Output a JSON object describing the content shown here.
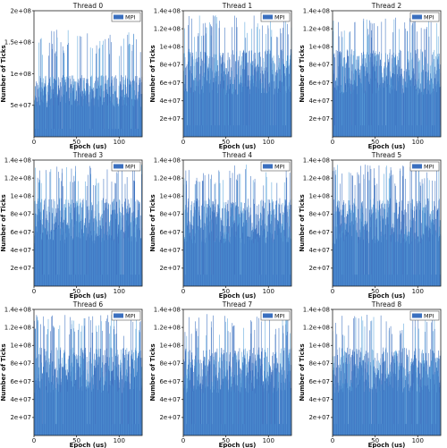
{
  "chart_data": [
    {
      "type": "bar",
      "title": "Thread 0",
      "xlabel": "Epoch (us)",
      "ylabel": "Number of Ticks",
      "legend": [
        "MPI"
      ],
      "legend_position": "top-right",
      "color": "#3a6fbf",
      "x_range": [
        0,
        127
      ],
      "ylim": [
        0,
        200000000
      ],
      "xticks": [
        0,
        50,
        100
      ],
      "yticks": [
        {
          "v": 50000000,
          "label": "5e+07"
        },
        {
          "v": 100000000,
          "label": "1e+08"
        },
        {
          "v": 150000000,
          "label": "1.5e+08"
        },
        {
          "v": 200000000,
          "label": "2e+08"
        }
      ],
      "approx_typical": 85000000,
      "approx_peak": 170000000,
      "seed": 11
    },
    {
      "type": "bar",
      "title": "Thread 1",
      "xlabel": "Epoch (us)",
      "ylabel": "Number of Ticks",
      "legend": [
        "MPI"
      ],
      "legend_position": "top-right",
      "color": "#3a6fbf",
      "x_range": [
        0,
        127
      ],
      "ylim": [
        0,
        140000000
      ],
      "xticks": [
        0,
        50,
        100
      ],
      "yticks": [
        {
          "v": 20000000,
          "label": "2e+07"
        },
        {
          "v": 40000000,
          "label": "4e+07"
        },
        {
          "v": 60000000,
          "label": "6e+07"
        },
        {
          "v": 80000000,
          "label": "8e+07"
        },
        {
          "v": 100000000,
          "label": "1e+08"
        },
        {
          "v": 120000000,
          "label": "1.2e+08"
        },
        {
          "v": 140000000,
          "label": "1.4e+08"
        }
      ],
      "approx_typical": 85000000,
      "approx_peak": 135000000,
      "seed": 23
    },
    {
      "type": "bar",
      "title": "Thread 2",
      "xlabel": "Epoch (us)",
      "ylabel": "Number of Ticks",
      "legend": [
        "MPI"
      ],
      "legend_position": "top-right",
      "color": "#3a6fbf",
      "x_range": [
        0,
        127
      ],
      "ylim": [
        0,
        140000000
      ],
      "xticks": [
        0,
        50,
        100
      ],
      "yticks": [
        {
          "v": 20000000,
          "label": "2e+07"
        },
        {
          "v": 40000000,
          "label": "4e+07"
        },
        {
          "v": 60000000,
          "label": "6e+07"
        },
        {
          "v": 80000000,
          "label": "8e+07"
        },
        {
          "v": 100000000,
          "label": "1e+08"
        },
        {
          "v": 120000000,
          "label": "1.2e+08"
        },
        {
          "v": 140000000,
          "label": "1.4e+08"
        }
      ],
      "approx_typical": 85000000,
      "approx_peak": 135000000,
      "seed": 37
    },
    {
      "type": "bar",
      "title": "Thread 3",
      "xlabel": "Epoch (us)",
      "ylabel": "Number of Ticks",
      "legend": [
        "MPI"
      ],
      "legend_position": "top-right",
      "color": "#3a6fbf",
      "x_range": [
        0,
        127
      ],
      "ylim": [
        0,
        140000000
      ],
      "xticks": [
        0,
        50,
        100
      ],
      "yticks": [
        {
          "v": 20000000,
          "label": "2e+07"
        },
        {
          "v": 40000000,
          "label": "4e+07"
        },
        {
          "v": 60000000,
          "label": "6e+07"
        },
        {
          "v": 80000000,
          "label": "8e+07"
        },
        {
          "v": 100000000,
          "label": "1e+08"
        },
        {
          "v": 120000000,
          "label": "1.2e+08"
        },
        {
          "v": 140000000,
          "label": "1.4e+08"
        }
      ],
      "approx_typical": 85000000,
      "approx_peak": 135000000,
      "seed": 41
    },
    {
      "type": "bar",
      "title": "Thread 4",
      "xlabel": "Epoch (us)",
      "ylabel": "Number of Ticks",
      "legend": [
        "MPI"
      ],
      "legend_position": "top-right",
      "color": "#3a6fbf",
      "x_range": [
        0,
        127
      ],
      "ylim": [
        0,
        140000000
      ],
      "xticks": [
        0,
        50,
        100
      ],
      "yticks": [
        {
          "v": 20000000,
          "label": "2e+07"
        },
        {
          "v": 40000000,
          "label": "4e+07"
        },
        {
          "v": 60000000,
          "label": "6e+07"
        },
        {
          "v": 80000000,
          "label": "8e+07"
        },
        {
          "v": 100000000,
          "label": "1e+08"
        },
        {
          "v": 120000000,
          "label": "1.2e+08"
        },
        {
          "v": 140000000,
          "label": "1.4e+08"
        }
      ],
      "approx_typical": 85000000,
      "approx_peak": 135000000,
      "seed": 53
    },
    {
      "type": "bar",
      "title": "Thread 5",
      "xlabel": "Epoch (us)",
      "ylabel": "Number of Ticks",
      "legend": [
        "MPI"
      ],
      "legend_position": "top-right",
      "color": "#3a6fbf",
      "x_range": [
        0,
        127
      ],
      "ylim": [
        0,
        140000000
      ],
      "xticks": [
        0,
        50,
        100
      ],
      "yticks": [
        {
          "v": 20000000,
          "label": "2e+07"
        },
        {
          "v": 40000000,
          "label": "4e+07"
        },
        {
          "v": 60000000,
          "label": "6e+07"
        },
        {
          "v": 80000000,
          "label": "8e+07"
        },
        {
          "v": 100000000,
          "label": "1e+08"
        },
        {
          "v": 120000000,
          "label": "1.2e+08"
        },
        {
          "v": 140000000,
          "label": "1.4e+08"
        }
      ],
      "approx_typical": 85000000,
      "approx_peak": 135000000,
      "seed": 67
    },
    {
      "type": "bar",
      "title": "Thread 6",
      "xlabel": "Epoch (us)",
      "ylabel": "Number of Ticks",
      "legend": [
        "MPI"
      ],
      "legend_position": "top-right",
      "color": "#3a6fbf",
      "x_range": [
        0,
        127
      ],
      "ylim": [
        0,
        140000000
      ],
      "xticks": [
        0,
        50,
        100
      ],
      "yticks": [
        {
          "v": 20000000,
          "label": "2e+07"
        },
        {
          "v": 40000000,
          "label": "4e+07"
        },
        {
          "v": 60000000,
          "label": "6e+07"
        },
        {
          "v": 80000000,
          "label": "8e+07"
        },
        {
          "v": 100000000,
          "label": "1e+08"
        },
        {
          "v": 120000000,
          "label": "1.2e+08"
        },
        {
          "v": 140000000,
          "label": "1.4e+08"
        }
      ],
      "approx_typical": 85000000,
      "approx_peak": 135000000,
      "seed": 79
    },
    {
      "type": "bar",
      "title": "Thread 7",
      "xlabel": "Epoch (us)",
      "ylabel": "Number of Ticks",
      "legend": [
        "MPI"
      ],
      "legend_position": "top-right",
      "color": "#3a6fbf",
      "x_range": [
        0,
        127
      ],
      "ylim": [
        0,
        140000000
      ],
      "xticks": [
        0,
        50,
        100
      ],
      "yticks": [
        {
          "v": 20000000,
          "label": "2e+07"
        },
        {
          "v": 40000000,
          "label": "4e+07"
        },
        {
          "v": 60000000,
          "label": "6e+07"
        },
        {
          "v": 80000000,
          "label": "8e+07"
        },
        {
          "v": 100000000,
          "label": "1e+08"
        },
        {
          "v": 120000000,
          "label": "1.2e+08"
        },
        {
          "v": 140000000,
          "label": "1.4e+08"
        }
      ],
      "approx_typical": 85000000,
      "approx_peak": 135000000,
      "seed": 83
    },
    {
      "type": "bar",
      "title": "Thread 8",
      "xlabel": "Epoch (us)",
      "ylabel": "Number of Ticks",
      "legend": [
        "MPI"
      ],
      "legend_position": "top-right",
      "color": "#3a6fbf",
      "x_range": [
        0,
        127
      ],
      "ylim": [
        0,
        140000000
      ],
      "xticks": [
        0,
        50,
        100
      ],
      "yticks": [
        {
          "v": 20000000,
          "label": "2e+07"
        },
        {
          "v": 40000000,
          "label": "4e+07"
        },
        {
          "v": 60000000,
          "label": "6e+07"
        },
        {
          "v": 80000000,
          "label": "8e+07"
        },
        {
          "v": 100000000,
          "label": "1e+08"
        },
        {
          "v": 120000000,
          "label": "1.2e+08"
        },
        {
          "v": 140000000,
          "label": "1.4e+08"
        }
      ],
      "approx_typical": 85000000,
      "approx_peak": 135000000,
      "seed": 97
    }
  ]
}
